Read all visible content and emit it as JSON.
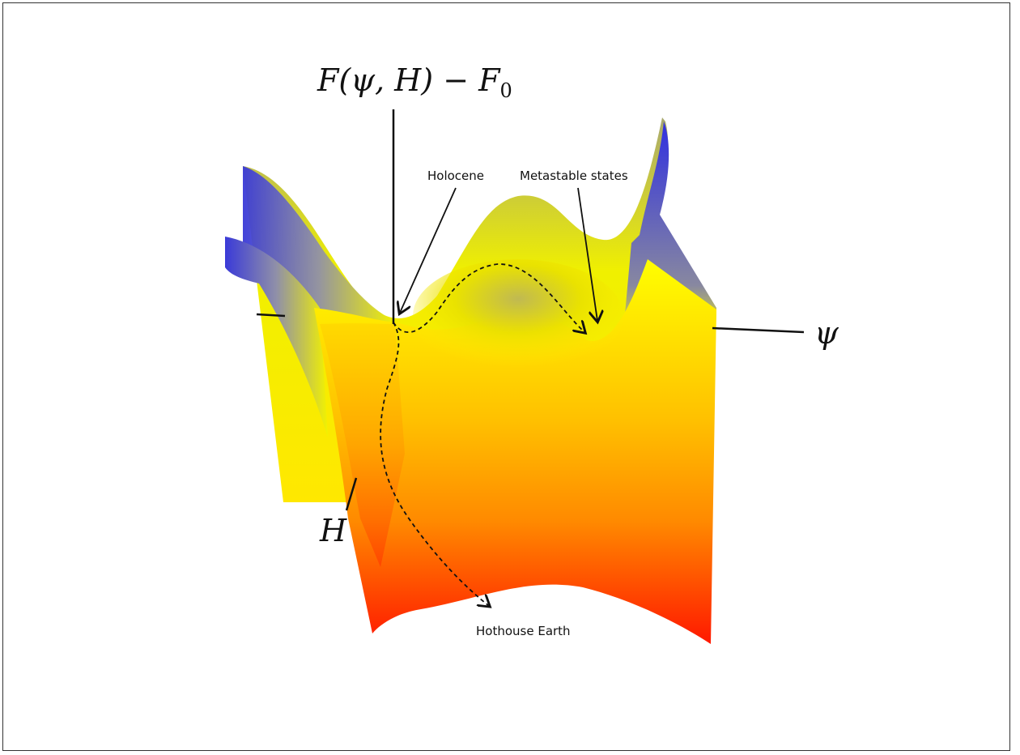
{
  "labels": {
    "energy_axis": "F(ψ, H) − F",
    "energy_axis_subscript": "0",
    "psi_axis": "ψ",
    "h_axis": "H",
    "holocene": "Holocene",
    "metastable": "Metastable states",
    "hothouse": "Hothouse Earth"
  },
  "colors": {
    "low": "#ff0000",
    "mid": "#ff9a00",
    "high": "#ffff00",
    "edge": "#2f2fd0",
    "outline": "#111111"
  }
}
